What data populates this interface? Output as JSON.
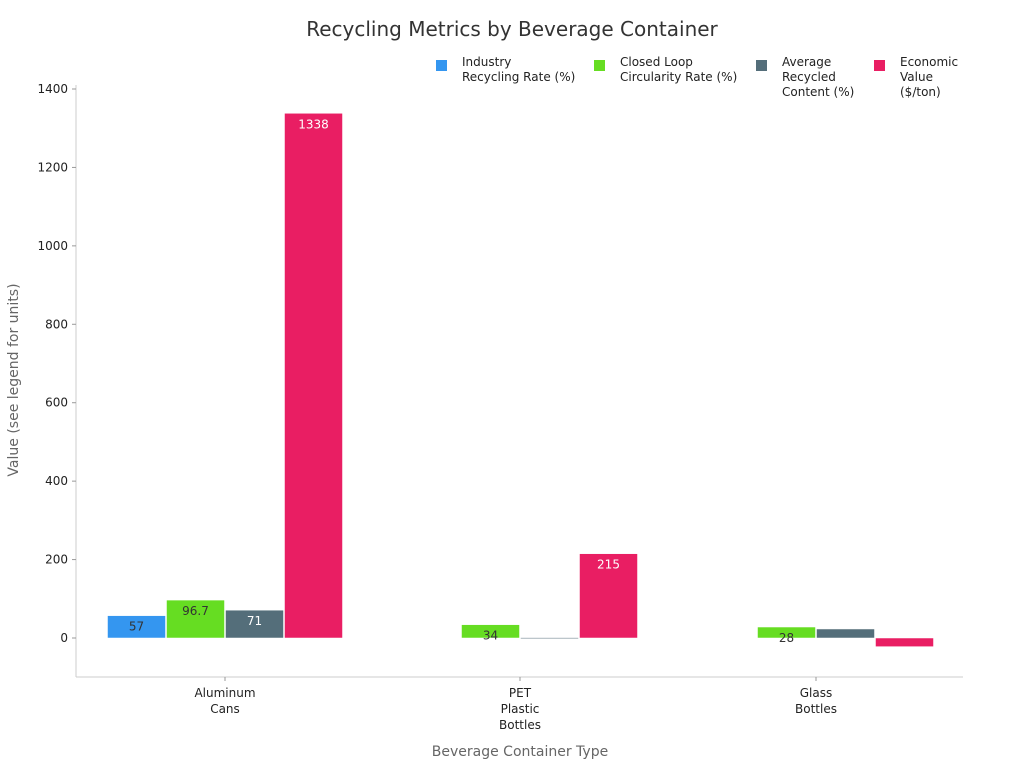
{
  "chart_data": {
    "type": "bar",
    "title": "Recycling Metrics by Beverage Container",
    "xlabel": "Beverage Container Type",
    "ylabel": "Value (see legend for units)",
    "ylim": [
      -100,
      1420
    ],
    "yticks": [
      0,
      200,
      400,
      600,
      800,
      1000,
      1200,
      1400
    ],
    "categories": [
      [
        "Aluminum",
        "Cans"
      ],
      [
        "PET",
        "Plastic",
        "Bottles"
      ],
      [
        "Glass",
        "Bottles"
      ]
    ],
    "legend_position": "top-right",
    "series": [
      {
        "name": [
          "Industry",
          "Recycling Rate (%)"
        ],
        "color": "#3496f0",
        "values": [
          57,
          null,
          null
        ],
        "labels": [
          "57",
          "",
          ""
        ]
      },
      {
        "name": [
          "Closed Loop",
          "Circularity Rate (%)"
        ],
        "color": "#66dd22",
        "values": [
          96.7,
          34,
          28
        ],
        "labels": [
          "96.7",
          "34",
          "28"
        ]
      },
      {
        "name": [
          "Average",
          "Recycled",
          "Content (%)"
        ],
        "color": "#546e7a",
        "values": [
          71,
          1,
          23
        ],
        "labels": [
          "71",
          "",
          ""
        ]
      },
      {
        "name": [
          "Economic",
          "Value",
          "($/ton)"
        ],
        "color": "#e91e63",
        "values": [
          1338,
          215,
          -22
        ],
        "labels": [
          "1338",
          "215",
          ""
        ]
      }
    ]
  }
}
